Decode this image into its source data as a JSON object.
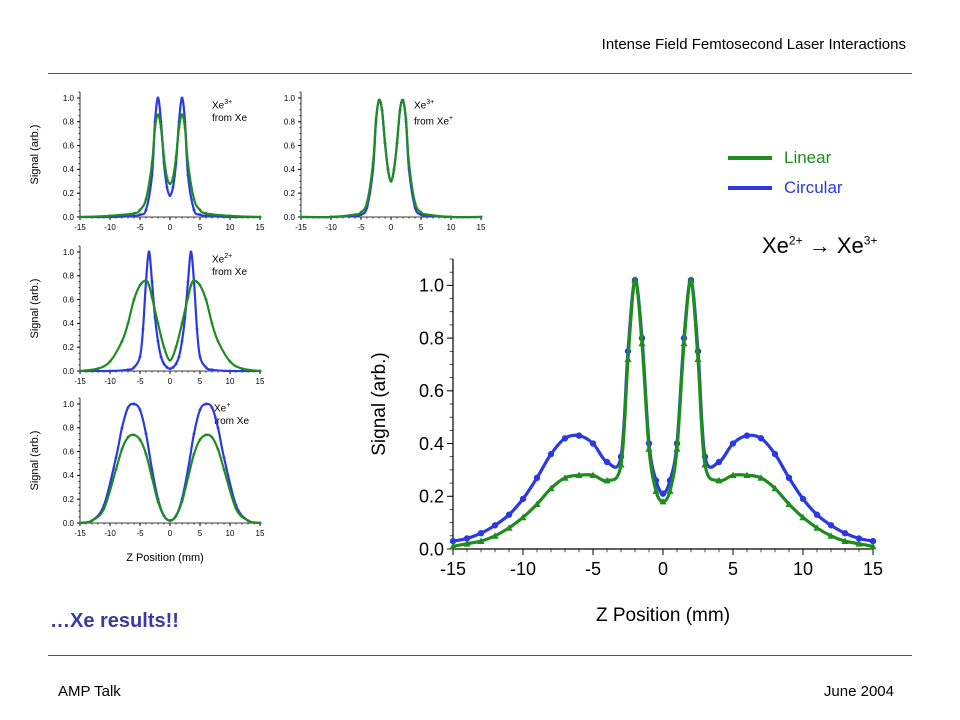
{
  "header": {
    "title": "Intense Field Femtosecond Laser Interactions"
  },
  "footer": {
    "left": "AMP Talk",
    "right": "June 2004"
  },
  "tagline": "…Xe results!!",
  "legend": [
    {
      "label": "Linear",
      "color": "#1e8c1e"
    },
    {
      "label": "Circular",
      "color": "#2a3ae0"
    }
  ],
  "colors": {
    "linear": "#1e8c1e",
    "circular": "#2a3ae0"
  },
  "chart_data": [
    {
      "id": "main",
      "type": "line",
      "title_parts": {
        "from": "Xe",
        "from_sup": "2+",
        "arrow": "→",
        "to": "Xe",
        "to_sup": "3+"
      },
      "xlabel": "Z Position (mm)",
      "ylabel": "Signal (arb.)",
      "xlim": [
        -15,
        15
      ],
      "ylim": [
        0,
        1.1
      ],
      "xticks": [
        "-15",
        "-10",
        "-5",
        "0",
        "5",
        "10",
        "15"
      ],
      "yticks": [
        "0.0",
        "0.2",
        "0.4",
        "0.6",
        "0.8",
        "1.0"
      ],
      "series": [
        {
          "name": "Circular",
          "color": "#2a3ae0",
          "marker": "circle",
          "x": [
            -15,
            -14,
            -13,
            -12,
            -11,
            -10,
            -9,
            -8,
            -7,
            -6,
            -5,
            -4,
            -3,
            -2.5,
            -2,
            -1.5,
            -1,
            -0.5,
            0,
            0.5,
            1,
            1.5,
            2,
            2.5,
            3,
            4,
            5,
            6,
            7,
            8,
            9,
            10,
            11,
            12,
            13,
            14,
            15
          ],
          "y": [
            0.03,
            0.04,
            0.06,
            0.09,
            0.13,
            0.19,
            0.27,
            0.36,
            0.42,
            0.43,
            0.4,
            0.33,
            0.35,
            0.75,
            1.02,
            0.8,
            0.4,
            0.26,
            0.21,
            0.26,
            0.4,
            0.8,
            1.02,
            0.75,
            0.35,
            0.33,
            0.4,
            0.43,
            0.42,
            0.36,
            0.27,
            0.19,
            0.13,
            0.09,
            0.06,
            0.04,
            0.03
          ]
        },
        {
          "name": "Linear",
          "color": "#1e8c1e",
          "marker": "triangle",
          "x": [
            -15,
            -14,
            -13,
            -12,
            -11,
            -10,
            -9,
            -8,
            -7,
            -6,
            -5,
            -4,
            -3,
            -2.5,
            -2,
            -1.5,
            -1,
            -0.5,
            0,
            0.5,
            1,
            1.5,
            2,
            2.5,
            3,
            4,
            5,
            6,
            7,
            8,
            9,
            10,
            11,
            12,
            13,
            14,
            15
          ],
          "y": [
            0.01,
            0.02,
            0.03,
            0.05,
            0.08,
            0.12,
            0.17,
            0.23,
            0.27,
            0.28,
            0.28,
            0.26,
            0.32,
            0.72,
            1.02,
            0.78,
            0.38,
            0.22,
            0.18,
            0.22,
            0.38,
            0.78,
            1.02,
            0.72,
            0.32,
            0.26,
            0.28,
            0.28,
            0.27,
            0.23,
            0.17,
            0.12,
            0.08,
            0.05,
            0.03,
            0.02,
            0.01
          ]
        }
      ]
    },
    {
      "id": "inset1",
      "type": "line",
      "label_parts": {
        "ion": "Xe",
        "ion_sup": "3+",
        "from": "from Xe",
        "from_sup": ""
      },
      "ylabel": "Signal (arb.)",
      "xlabel": "",
      "xlim": [
        -15,
        15
      ],
      "ylim": [
        0,
        1.05
      ],
      "xticks": [
        "-15",
        "-10",
        "-5",
        "0",
        "5",
        "10",
        "15"
      ],
      "yticks": [
        "0.0",
        "0.2",
        "0.4",
        "0.6",
        "0.8",
        "1.0"
      ],
      "series": [
        {
          "name": "Circular",
          "color": "#2a3ae0",
          "x": [
            -15,
            -10,
            -6,
            -5,
            -4,
            -3,
            -2.5,
            -2,
            -1.5,
            -1,
            -0.5,
            0,
            0.5,
            1,
            1.5,
            2,
            2.5,
            3,
            4,
            5,
            6,
            10,
            15
          ],
          "y": [
            0.0,
            0.0,
            0.01,
            0.02,
            0.06,
            0.35,
            0.8,
            1.0,
            0.8,
            0.45,
            0.25,
            0.18,
            0.25,
            0.45,
            0.8,
            1.0,
            0.8,
            0.35,
            0.06,
            0.02,
            0.01,
            0.0,
            0.0
          ]
        },
        {
          "name": "Linear",
          "color": "#1e8c1e",
          "x": [
            -15,
            -10,
            -6,
            -5,
            -4,
            -3,
            -2.5,
            -2,
            -1.5,
            -1,
            -0.5,
            0,
            0.5,
            1,
            1.5,
            2,
            2.5,
            3,
            4,
            5,
            6,
            10,
            15
          ],
          "y": [
            0.0,
            0.01,
            0.03,
            0.06,
            0.15,
            0.45,
            0.75,
            0.86,
            0.75,
            0.5,
            0.33,
            0.28,
            0.33,
            0.5,
            0.75,
            0.86,
            0.75,
            0.45,
            0.15,
            0.06,
            0.03,
            0.01,
            0.0
          ]
        }
      ]
    },
    {
      "id": "inset2",
      "type": "line",
      "label_parts": {
        "ion": "Xe",
        "ion_sup": "3+",
        "from": "from Xe",
        "from_sup": "+"
      },
      "ylabel": "",
      "xlabel": "",
      "xlim": [
        -15,
        15
      ],
      "ylim": [
        0,
        1.05
      ],
      "xticks": [
        "-15",
        "-10",
        "-5",
        "0",
        "5",
        "10",
        "15"
      ],
      "yticks": [
        "0.0",
        "0.2",
        "0.4",
        "0.6",
        "0.8",
        "1.0"
      ],
      "series": [
        {
          "name": "Circular",
          "color": "#2a3ae0",
          "x": [
            -15,
            -10,
            -6,
            -5,
            -4,
            -3,
            -2.5,
            -2,
            -1.5,
            -1,
            -0.5,
            0,
            0.5,
            1,
            1.5,
            2,
            2.5,
            3,
            4,
            5,
            6,
            10,
            15
          ],
          "y": [
            0.0,
            0.0,
            0.01,
            0.02,
            0.08,
            0.4,
            0.8,
            0.98,
            0.9,
            0.62,
            0.4,
            0.3,
            0.4,
            0.62,
            0.9,
            0.98,
            0.8,
            0.4,
            0.08,
            0.02,
            0.01,
            0.0,
            0.0
          ]
        },
        {
          "name": "Linear",
          "color": "#1e8c1e",
          "x": [
            -15,
            -10,
            -6,
            -5,
            -4,
            -3,
            -2.5,
            -2,
            -1.5,
            -1,
            -0.5,
            0,
            0.5,
            1,
            1.5,
            2,
            2.5,
            3,
            4,
            5,
            6,
            10,
            15
          ],
          "y": [
            0.0,
            0.0,
            0.02,
            0.04,
            0.12,
            0.45,
            0.82,
            0.98,
            0.9,
            0.62,
            0.4,
            0.3,
            0.4,
            0.62,
            0.9,
            0.98,
            0.82,
            0.45,
            0.12,
            0.04,
            0.02,
            0.0,
            0.0
          ]
        }
      ]
    },
    {
      "id": "inset3",
      "type": "line",
      "label_parts": {
        "ion": "Xe",
        "ion_sup": "2+",
        "from": "from Xe",
        "from_sup": ""
      },
      "ylabel": "Signal (arb.)",
      "xlabel": "",
      "xlim": [
        -15,
        15
      ],
      "ylim": [
        0,
        1.05
      ],
      "xticks": [
        "-15",
        "-10",
        "-5",
        "0",
        "5",
        "10",
        "15"
      ],
      "yticks": [
        "0.0",
        "0.2",
        "0.4",
        "0.6",
        "0.8",
        "1.0"
      ],
      "series": [
        {
          "name": "Circular",
          "color": "#2a3ae0",
          "x": [
            -15,
            -10,
            -7,
            -6,
            -5,
            -4.5,
            -4,
            -3.5,
            -3,
            -2.5,
            -2,
            -1.5,
            -1,
            -0.5,
            0,
            0.5,
            1,
            1.5,
            2,
            2.5,
            3,
            3.5,
            4,
            4.5,
            5,
            6,
            7,
            10,
            15
          ],
          "y": [
            0.0,
            0.0,
            0.01,
            0.03,
            0.12,
            0.35,
            0.75,
            1.0,
            0.75,
            0.45,
            0.25,
            0.12,
            0.06,
            0.03,
            0.02,
            0.03,
            0.06,
            0.12,
            0.25,
            0.45,
            0.75,
            1.0,
            0.75,
            0.35,
            0.12,
            0.03,
            0.01,
            0.0,
            0.0
          ]
        },
        {
          "name": "Linear",
          "color": "#1e8c1e",
          "x": [
            -15,
            -12,
            -10,
            -8,
            -7,
            -6,
            -5,
            -4,
            -3.5,
            -3,
            -2,
            -1,
            0,
            1,
            2,
            3,
            3.5,
            4,
            5,
            6,
            7,
            8,
            10,
            12,
            15
          ],
          "y": [
            0.0,
            0.02,
            0.08,
            0.25,
            0.4,
            0.6,
            0.72,
            0.76,
            0.72,
            0.62,
            0.4,
            0.2,
            0.09,
            0.2,
            0.4,
            0.62,
            0.72,
            0.76,
            0.72,
            0.6,
            0.4,
            0.25,
            0.08,
            0.02,
            0.0
          ]
        }
      ]
    },
    {
      "id": "inset4",
      "type": "line",
      "label_parts": {
        "ion": "Xe",
        "ion_sup": "+",
        "from": "from Xe",
        "from_sup": ""
      },
      "ylabel": "Signal (arb.)",
      "xlabel": "Z Position (mm)",
      "xlim": [
        -15,
        15
      ],
      "ylim": [
        0,
        1.05
      ],
      "xticks": [
        "-15",
        "-10",
        "-5",
        "0",
        "5",
        "10",
        "15"
      ],
      "yticks": [
        "0.0",
        "0.2",
        "0.4",
        "0.6",
        "0.8",
        "1.0"
      ],
      "series": [
        {
          "name": "Circular",
          "color": "#2a3ae0",
          "x": [
            -15,
            -13,
            -11,
            -9,
            -8,
            -7,
            -6,
            -5,
            -4,
            -3,
            -2,
            -1,
            0,
            1,
            2,
            3,
            4,
            5,
            6,
            7,
            8,
            9,
            11,
            13,
            15
          ],
          "y": [
            0.0,
            0.02,
            0.15,
            0.55,
            0.8,
            0.97,
            1.0,
            0.95,
            0.75,
            0.45,
            0.2,
            0.06,
            0.02,
            0.06,
            0.2,
            0.45,
            0.75,
            0.95,
            1.0,
            0.97,
            0.8,
            0.55,
            0.15,
            0.02,
            0.0
          ]
        },
        {
          "name": "Linear",
          "color": "#1e8c1e",
          "x": [
            -15,
            -13,
            -11,
            -9,
            -8,
            -7,
            -6,
            -5,
            -4,
            -3,
            -2,
            -1,
            0,
            1,
            2,
            3,
            4,
            5,
            6,
            7,
            8,
            9,
            11,
            13,
            15
          ],
          "y": [
            0.0,
            0.02,
            0.12,
            0.45,
            0.62,
            0.72,
            0.74,
            0.7,
            0.58,
            0.38,
            0.18,
            0.06,
            0.02,
            0.06,
            0.18,
            0.38,
            0.58,
            0.7,
            0.74,
            0.72,
            0.62,
            0.45,
            0.12,
            0.02,
            0.0
          ]
        }
      ]
    }
  ]
}
